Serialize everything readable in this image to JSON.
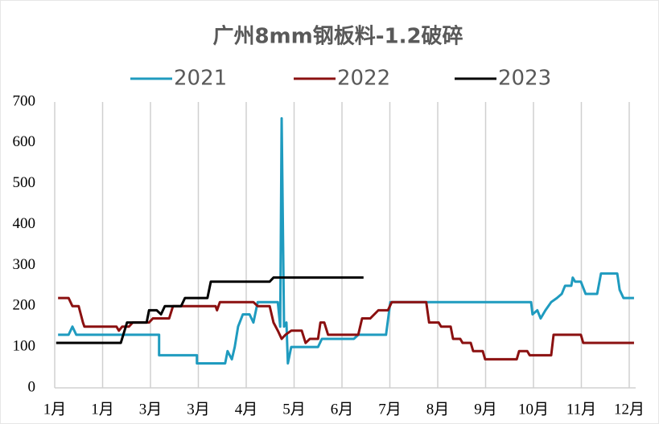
{
  "chart_data": {
    "type": "line",
    "title": "广州8mm钢板料-1.2破碎",
    "xlim": [
      0,
      12
    ],
    "xticks": [
      {
        "value": 0,
        "label": "1月"
      },
      {
        "value": 1,
        "label": "1月"
      },
      {
        "value": 2,
        "label": "3月"
      },
      {
        "value": 3,
        "label": "3月"
      },
      {
        "value": 4,
        "label": "4月"
      },
      {
        "value": 5,
        "label": "5月"
      },
      {
        "value": 6,
        "label": "6月"
      },
      {
        "value": 7,
        "label": "7月"
      },
      {
        "value": 8,
        "label": "8月"
      },
      {
        "value": 9,
        "label": "9月"
      },
      {
        "value": 10,
        "label": "10月"
      },
      {
        "value": 11,
        "label": "11月"
      },
      {
        "value": 12,
        "label": "12月"
      }
    ],
    "ylim": [
      0,
      700
    ],
    "yticks": [
      0,
      100,
      200,
      300,
      400,
      500,
      600,
      700
    ],
    "grid": "x",
    "legend": "top",
    "series": [
      {
        "name": "2021",
        "color": "#1f9bbf",
        "x": [
          0.07,
          0.29,
          0.37,
          0.45,
          2.18,
          2.18,
          2.97,
          2.97,
          3.56,
          3.61,
          3.7,
          3.76,
          3.83,
          3.93,
          4.07,
          4.15,
          4.24,
          4.66,
          4.71,
          4.74,
          4.79,
          4.84,
          4.87,
          4.94,
          5.5,
          5.58,
          6.25,
          6.34,
          6.92,
          7.01,
          9.95,
          9.98,
          10.08,
          10.15,
          10.25,
          10.37,
          10.49,
          10.59,
          10.66,
          10.79,
          10.82,
          10.87,
          10.99,
          11.09,
          11.33,
          11.41,
          11.75,
          11.8,
          11.88,
          12.1
        ],
        "values": [
          130,
          130,
          150,
          130,
          130,
          80,
          80,
          60,
          60,
          90,
          70,
          100,
          150,
          180,
          180,
          160,
          210,
          210,
          150,
          660,
          150,
          160,
          60,
          100,
          100,
          120,
          120,
          130,
          130,
          210,
          210,
          180,
          190,
          170,
          190,
          210,
          220,
          230,
          250,
          250,
          270,
          260,
          260,
          230,
          230,
          280,
          280,
          240,
          220,
          220
        ]
      },
      {
        "name": "2022",
        "color": "#8b1010",
        "x": [
          0.07,
          0.29,
          0.37,
          0.5,
          0.59,
          0.62,
          1.29,
          1.34,
          1.41,
          1.55,
          1.63,
          1.97,
          2.05,
          2.39,
          2.47,
          3.36,
          3.39,
          3.45,
          4.15,
          4.24,
          4.49,
          4.57,
          4.66,
          4.74,
          4.82,
          4.94,
          5.16,
          5.24,
          5.33,
          5.5,
          5.55,
          5.63,
          5.71,
          6.34,
          6.42,
          6.59,
          6.76,
          6.96,
          7.04,
          7.76,
          7.82,
          8.02,
          8.07,
          8.27,
          8.32,
          8.47,
          8.52,
          8.69,
          8.74,
          8.94,
          8.99,
          9.65,
          9.7,
          9.87,
          9.92,
          10.37,
          10.42,
          10.99,
          11.04,
          12.1
        ],
        "values": [
          220,
          220,
          200,
          200,
          160,
          150,
          150,
          140,
          150,
          150,
          160,
          160,
          170,
          170,
          200,
          200,
          190,
          210,
          210,
          200,
          200,
          160,
          140,
          120,
          130,
          140,
          140,
          110,
          120,
          120,
          160,
          160,
          130,
          130,
          170,
          170,
          190,
          190,
          210,
          210,
          160,
          160,
          150,
          150,
          120,
          120,
          110,
          110,
          90,
          90,
          70,
          70,
          90,
          90,
          80,
          80,
          130,
          130,
          110,
          110
        ]
      },
      {
        "name": "2023",
        "color": "#000000",
        "x": [
          0.03,
          1.38,
          1.51,
          1.92,
          1.97,
          2.13,
          2.22,
          2.3,
          2.64,
          2.72,
          3.19,
          3.26,
          4.49,
          4.57,
          6.45
        ],
        "values": [
          110,
          110,
          160,
          160,
          190,
          190,
          180,
          200,
          200,
          220,
          220,
          260,
          260,
          270,
          270
        ]
      }
    ]
  }
}
